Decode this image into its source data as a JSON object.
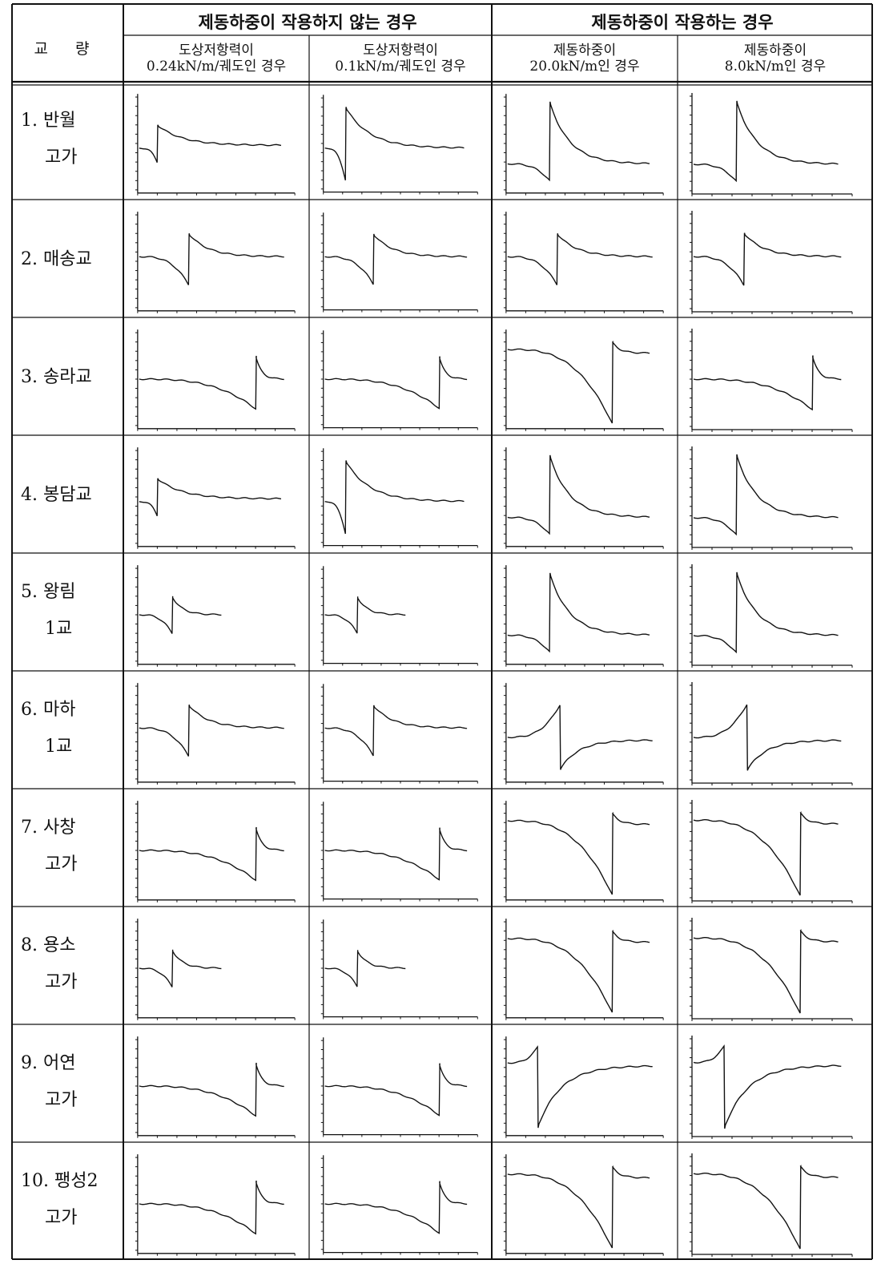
{
  "table": {
    "corner_label": "교 량",
    "group_headers": [
      "제동하중이 작용하지 않는 경우",
      "제동하중이 작용하는 경우"
    ],
    "sub_headers": [
      [
        "도상저항력이",
        "0.24kN/m/궤도인 경우"
      ],
      [
        "도상저항력이",
        "0.1kN/m/궤도인 경우"
      ],
      [
        "제동하중이",
        "20.0kN/m인 경우"
      ],
      [
        "제동하중이",
        "8.0kN/m인 경우"
      ]
    ],
    "bridges": [
      {
        "line1": "1. 반월",
        "line2": "고가"
      },
      {
        "line1": "2. 매송교",
        "line2": ""
      },
      {
        "line1": "3. 송라교",
        "line2": ""
      },
      {
        "line1": "4. 봉담교",
        "line2": ""
      },
      {
        "line1": "5. 왕림",
        "line2": "1교"
      },
      {
        "line1": "6. 마하",
        "line2": "1교"
      },
      {
        "line1": "7. 사창",
        "line2": "고가"
      },
      {
        "line1": "8. 용소",
        "line2": "고가"
      },
      {
        "line1": "9. 어연",
        "line2": "고가"
      },
      {
        "line1": "10. 팽성2",
        "line2": "고가"
      }
    ]
  },
  "curve_shapes": [
    [
      "small_sdecay",
      "med_sdecay",
      "jump_decay",
      "jump_decay"
    ],
    [
      "mid_sdecay",
      "mid_sdecay",
      "mid_sdecay",
      "mid_sdecay"
    ],
    [
      "late_sdecay",
      "late_sdecay",
      "drop_jump",
      "late_sdecay"
    ],
    [
      "small_sdecay",
      "med_sdecay",
      "jump_decay",
      "jump_decay"
    ],
    [
      "short_sdecay",
      "short_sdecay",
      "jump_decay",
      "jump_decay"
    ],
    [
      "mid_sdecay",
      "mid_sdecay",
      "rise_drop",
      "rise_drop"
    ],
    [
      "late_sdecay",
      "late_sdecay",
      "drop_jump",
      "drop_jump"
    ],
    [
      "short_sdecay",
      "short_sdecay",
      "drop_jump",
      "drop_jump"
    ],
    [
      "late_sdecay",
      "late_sdecay",
      "spike_drop",
      "spike_drop"
    ],
    [
      "late_sdecay",
      "late_sdecay",
      "drop_jump",
      "drop_jump"
    ]
  ]
}
